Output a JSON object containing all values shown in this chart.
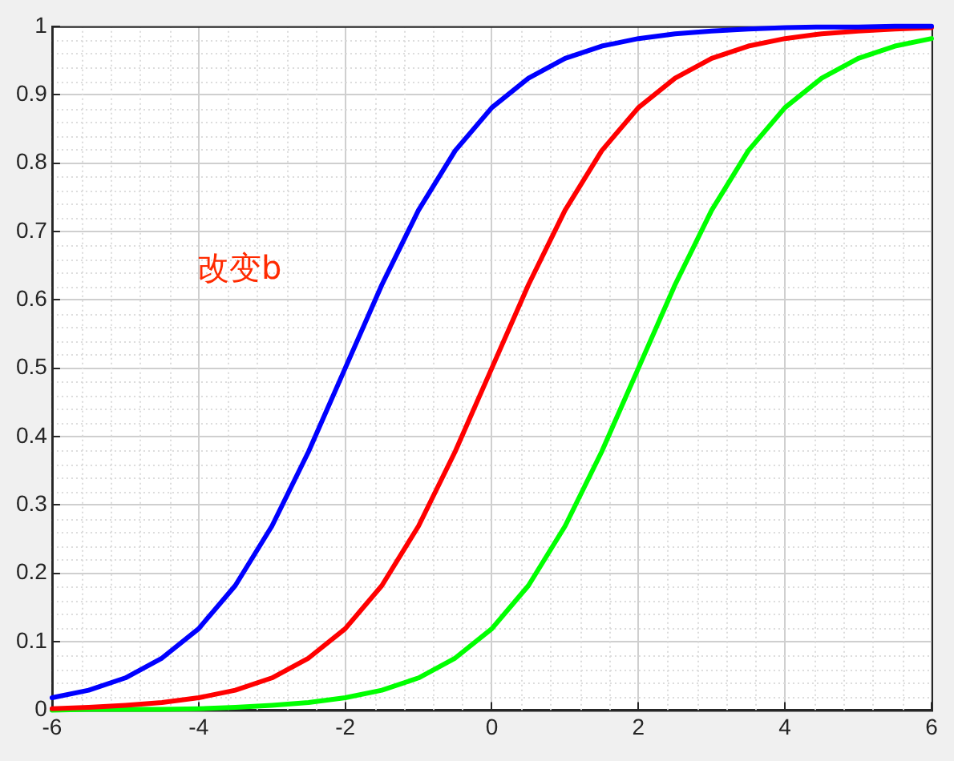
{
  "chart_data": {
    "type": "line",
    "x": [
      -6,
      -5.5,
      -5,
      -4.5,
      -4,
      -3.5,
      -3,
      -2.5,
      -2,
      -1.5,
      -1,
      -0.5,
      0,
      0.5,
      1,
      1.5,
      2,
      2.5,
      3,
      3.5,
      4,
      4.5,
      5,
      5.5,
      6
    ],
    "series": [
      {
        "color": "#0000ff",
        "values": [
          0.018,
          0.029,
          0.047,
          0.076,
          0.119,
          0.182,
          0.269,
          0.378,
          0.5,
          0.622,
          0.731,
          0.818,
          0.881,
          0.924,
          0.953,
          0.971,
          0.982,
          0.989,
          0.993,
          0.996,
          0.998,
          0.999,
          0.999,
          1.0,
          1.0
        ]
      },
      {
        "color": "#ff0000",
        "values": [
          0.002,
          0.004,
          0.007,
          0.011,
          0.018,
          0.029,
          0.047,
          0.076,
          0.119,
          0.182,
          0.269,
          0.378,
          0.5,
          0.622,
          0.731,
          0.818,
          0.881,
          0.924,
          0.953,
          0.971,
          0.982,
          0.989,
          0.993,
          0.996,
          0.998
        ]
      },
      {
        "color": "#00ff00",
        "values": [
          0,
          0.001,
          0.001,
          0.001,
          0.002,
          0.004,
          0.007,
          0.011,
          0.018,
          0.029,
          0.047,
          0.076,
          0.119,
          0.182,
          0.269,
          0.378,
          0.5,
          0.622,
          0.731,
          0.818,
          0.881,
          0.924,
          0.953,
          0.971,
          0.982
        ]
      }
    ],
    "xlim": [
      -6,
      6
    ],
    "xticks": [
      -6,
      -4,
      -2,
      0,
      2,
      4,
      6
    ],
    "ylim": [
      0,
      1
    ],
    "yticks": [
      0,
      0.1,
      0.2,
      0.3,
      0.4,
      0.5,
      0.6,
      0.7,
      0.8,
      0.9,
      1
    ],
    "grid": true,
    "legend": false,
    "marker": "none",
    "line_style": "solid",
    "annotations": [
      "改变b"
    ]
  }
}
